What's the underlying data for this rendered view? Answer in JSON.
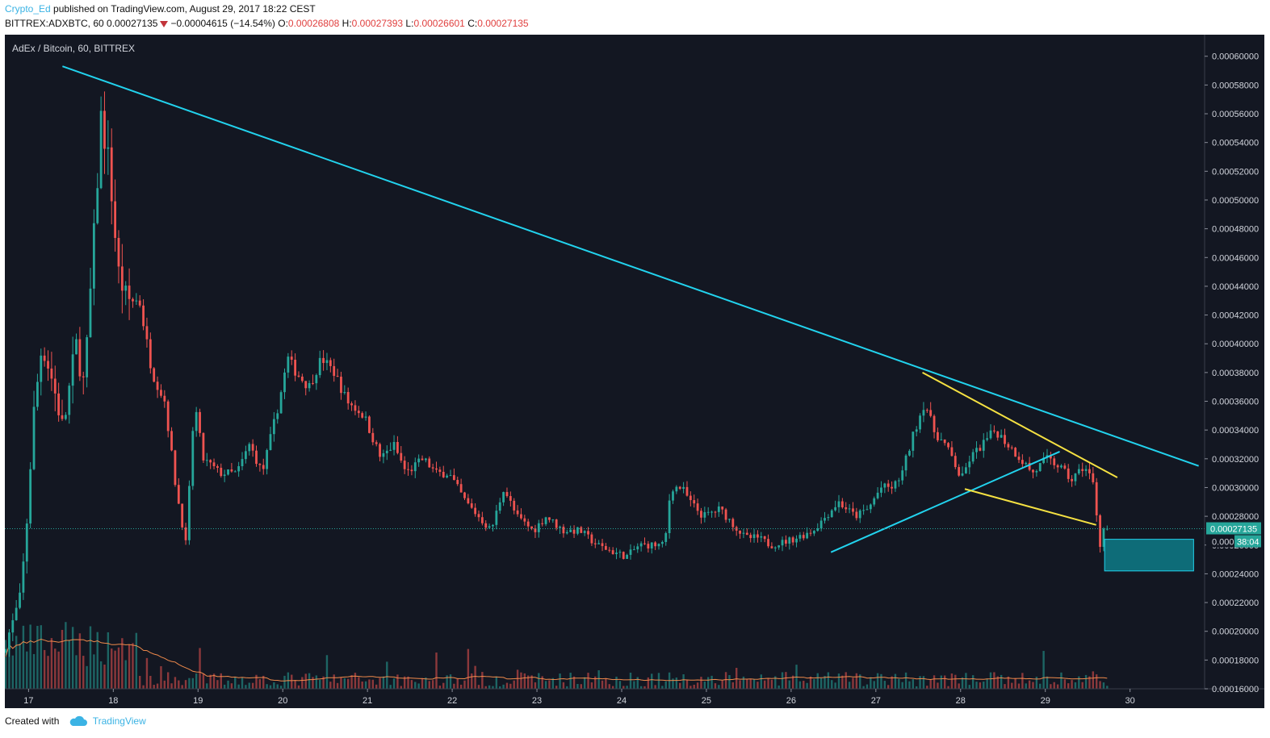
{
  "header": {
    "author": "Crypto_Ed",
    "published_text": "published on TradingView.com, August 29, 2017 18:22 CEST",
    "symbol_line": "BITTREX:ADXBTC, 60",
    "last_price": "0.00027135",
    "change": "−0.00004615 (−14.54%)",
    "open_label": "O:",
    "open": "0.00026808",
    "high_label": "H:",
    "high": "0.00027393",
    "low_label": "L:",
    "low": "0.00026601",
    "close_label": "C:",
    "close": "0.00027135"
  },
  "chart_title": "AdEx / Bitcoin, 60, BITTREX",
  "footer": {
    "created_with": "Created with",
    "brand": "TradingView"
  },
  "colors": {
    "background": "#131722",
    "up": "#26a69a",
    "down": "#ef5350",
    "trend_cyan": "#22d3ee",
    "trend_yellow": "#f5e142",
    "box_fill": "#0e8a95",
    "volume_ma": "#f08a4b",
    "last_price_label": "#26a69a"
  },
  "chart_data": {
    "type": "candlestick",
    "title": "AdEx / Bitcoin, 60, BITTREX",
    "x_ticks": [
      "17",
      "18",
      "19",
      "20",
      "21",
      "22",
      "23",
      "24",
      "25",
      "26",
      "27",
      "28",
      "29",
      "30"
    ],
    "y_ticks": [
      "0.00060000",
      "0.00058000",
      "0.00056000",
      "0.00054000",
      "0.00052000",
      "0.00050000",
      "0.00048000",
      "0.00046000",
      "0.00044000",
      "0.00042000",
      "0.00040000",
      "0.00038000",
      "0.00036000",
      "0.00034000",
      "0.00032000",
      "0.00030000",
      "0.00028000",
      "0.00026000",
      "0.00024000",
      "0.00022000",
      "0.00020000",
      "0.00018000",
      "0.00016000"
    ],
    "ylim": [
      0.00016,
      0.000615
    ],
    "xlim": [
      16.72,
      30.88
    ],
    "grid": false,
    "last_price": 0.00027135,
    "last_price_label": "0.00027135",
    "countdown_label": "38:04",
    "countdown_tick_label": "0.000",
    "price_anchors": [
      [
        16.73,
        0.000185
      ],
      [
        16.85,
        0.000205
      ],
      [
        16.95,
        0.000225
      ],
      [
        17.02,
        0.000275
      ],
      [
        17.1,
        0.00035
      ],
      [
        17.2,
        0.0004
      ],
      [
        17.3,
        0.00038
      ],
      [
        17.45,
        0.00034
      ],
      [
        17.6,
        0.0004
      ],
      [
        17.7,
        0.00037
      ],
      [
        17.82,
        0.00048
      ],
      [
        17.9,
        0.00056
      ],
      [
        18.0,
        0.00052
      ],
      [
        18.1,
        0.00045
      ],
      [
        18.2,
        0.00043
      ],
      [
        18.35,
        0.00043
      ],
      [
        18.5,
        0.00038
      ],
      [
        18.65,
        0.00036
      ],
      [
        18.78,
        0.0003
      ],
      [
        18.9,
        0.00026
      ],
      [
        19.0,
        0.00036
      ],
      [
        19.1,
        0.00032
      ],
      [
        19.3,
        0.00031
      ],
      [
        19.5,
        0.00031
      ],
      [
        19.65,
        0.00033
      ],
      [
        19.8,
        0.00031
      ],
      [
        20.0,
        0.00036
      ],
      [
        20.1,
        0.00039
      ],
      [
        20.2,
        0.00038
      ],
      [
        20.35,
        0.00037
      ],
      [
        20.5,
        0.00039
      ],
      [
        20.65,
        0.00038
      ],
      [
        20.8,
        0.00036
      ],
      [
        21.0,
        0.00035
      ],
      [
        21.2,
        0.00032
      ],
      [
        21.35,
        0.00033
      ],
      [
        21.5,
        0.00031
      ],
      [
        21.7,
        0.00032
      ],
      [
        21.85,
        0.00031
      ],
      [
        22.0,
        0.00031
      ],
      [
        22.2,
        0.00029
      ],
      [
        22.35,
        0.00028
      ],
      [
        22.5,
        0.00027
      ],
      [
        22.65,
        0.0003
      ],
      [
        22.8,
        0.00028
      ],
      [
        23.0,
        0.00027
      ],
      [
        23.15,
        0.00028
      ],
      [
        23.35,
        0.00027
      ],
      [
        23.55,
        0.00027
      ],
      [
        23.75,
        0.00026
      ],
      [
        23.95,
        0.000255
      ],
      [
        24.1,
        0.000252
      ],
      [
        24.25,
        0.00026
      ],
      [
        24.45,
        0.00026
      ],
      [
        24.55,
        0.00026
      ],
      [
        24.62,
        0.0003
      ],
      [
        24.75,
        0.0003
      ],
      [
        24.85,
        0.00029
      ],
      [
        25.0,
        0.00028
      ],
      [
        25.2,
        0.000285
      ],
      [
        25.35,
        0.000275
      ],
      [
        25.5,
        0.000265
      ],
      [
        25.65,
        0.000265
      ],
      [
        25.8,
        0.00026
      ],
      [
        25.95,
        0.000262
      ],
      [
        26.1,
        0.000265
      ],
      [
        26.3,
        0.00027
      ],
      [
        26.45,
        0.00028
      ],
      [
        26.6,
        0.00029
      ],
      [
        26.8,
        0.00028
      ],
      [
        26.95,
        0.000285
      ],
      [
        27.1,
        0.0003
      ],
      [
        27.25,
        0.0003
      ],
      [
        27.35,
        0.00031
      ],
      [
        27.5,
        0.00034
      ],
      [
        27.62,
        0.00036
      ],
      [
        27.72,
        0.00034
      ],
      [
        27.85,
        0.00033
      ],
      [
        27.95,
        0.00032
      ],
      [
        28.05,
        0.000305
      ],
      [
        28.15,
        0.00032
      ],
      [
        28.3,
        0.00033
      ],
      [
        28.45,
        0.00034
      ],
      [
        28.6,
        0.00033
      ],
      [
        28.75,
        0.00032
      ],
      [
        28.9,
        0.00031
      ],
      [
        29.05,
        0.00032
      ],
      [
        29.2,
        0.000315
      ],
      [
        29.35,
        0.000305
      ],
      [
        29.5,
        0.000315
      ],
      [
        29.6,
        0.000305
      ],
      [
        29.65,
        0.00028
      ],
      [
        29.7,
        0.000255
      ],
      [
        29.77,
        0.00027135
      ]
    ],
    "trend_lines": [
      {
        "color": "cyan",
        "from": [
          17.4,
          0.000593
        ],
        "to": [
          30.81,
          0.000315
        ]
      },
      {
        "color": "cyan",
        "from": [
          26.47,
          0.000255
        ],
        "to": [
          29.17,
          0.000325
        ]
      },
      {
        "color": "yellow",
        "from": [
          27.55,
          0.00038
        ],
        "to": [
          29.85,
          0.000307
        ]
      },
      {
        "color": "yellow",
        "from": [
          28.05,
          0.000299
        ],
        "to": [
          29.6,
          0.000274
        ]
      }
    ],
    "target_box": {
      "x": [
        29.7,
        30.75
      ],
      "y": [
        0.000242,
        0.000264
      ]
    }
  }
}
